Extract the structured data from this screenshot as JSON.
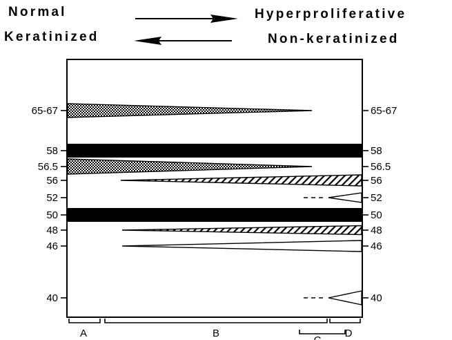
{
  "header": {
    "top_left": "Normal",
    "top_right": "Hyperproliferative",
    "bottom_left": "Keratinized",
    "bottom_right": "Non-keratinized"
  },
  "bands": [
    {
      "label": "65-67",
      "pattern": "dotted",
      "shape": "taper-right",
      "extent": "A-B"
    },
    {
      "label": "58",
      "pattern": "solid",
      "shape": "full",
      "extent": "A-D"
    },
    {
      "label": "56.5",
      "pattern": "dotted",
      "shape": "taper-right",
      "extent": "A-B"
    },
    {
      "label": "56",
      "pattern": "hatched",
      "shape": "taper-left",
      "extent": "B-D"
    },
    {
      "label": "52",
      "pattern": "open",
      "shape": "taper-left",
      "extent": "C-D",
      "dashed_lead": true
    },
    {
      "label": "50",
      "pattern": "solid",
      "shape": "full",
      "extent": "A-D"
    },
    {
      "label": "48",
      "pattern": "hatched",
      "shape": "taper-left",
      "extent": "B-D"
    },
    {
      "label": "46",
      "pattern": "open",
      "shape": "taper-left",
      "extent": "B-D"
    },
    {
      "label": "40",
      "pattern": "open",
      "shape": "taper-left",
      "extent": "C-D",
      "dashed_lead": true
    }
  ],
  "sections": [
    {
      "label": "A"
    },
    {
      "label": "B"
    },
    {
      "label": "C"
    },
    {
      "label": "D"
    }
  ],
  "colors": {
    "ink": "#000000",
    "background": "#ffffff"
  }
}
